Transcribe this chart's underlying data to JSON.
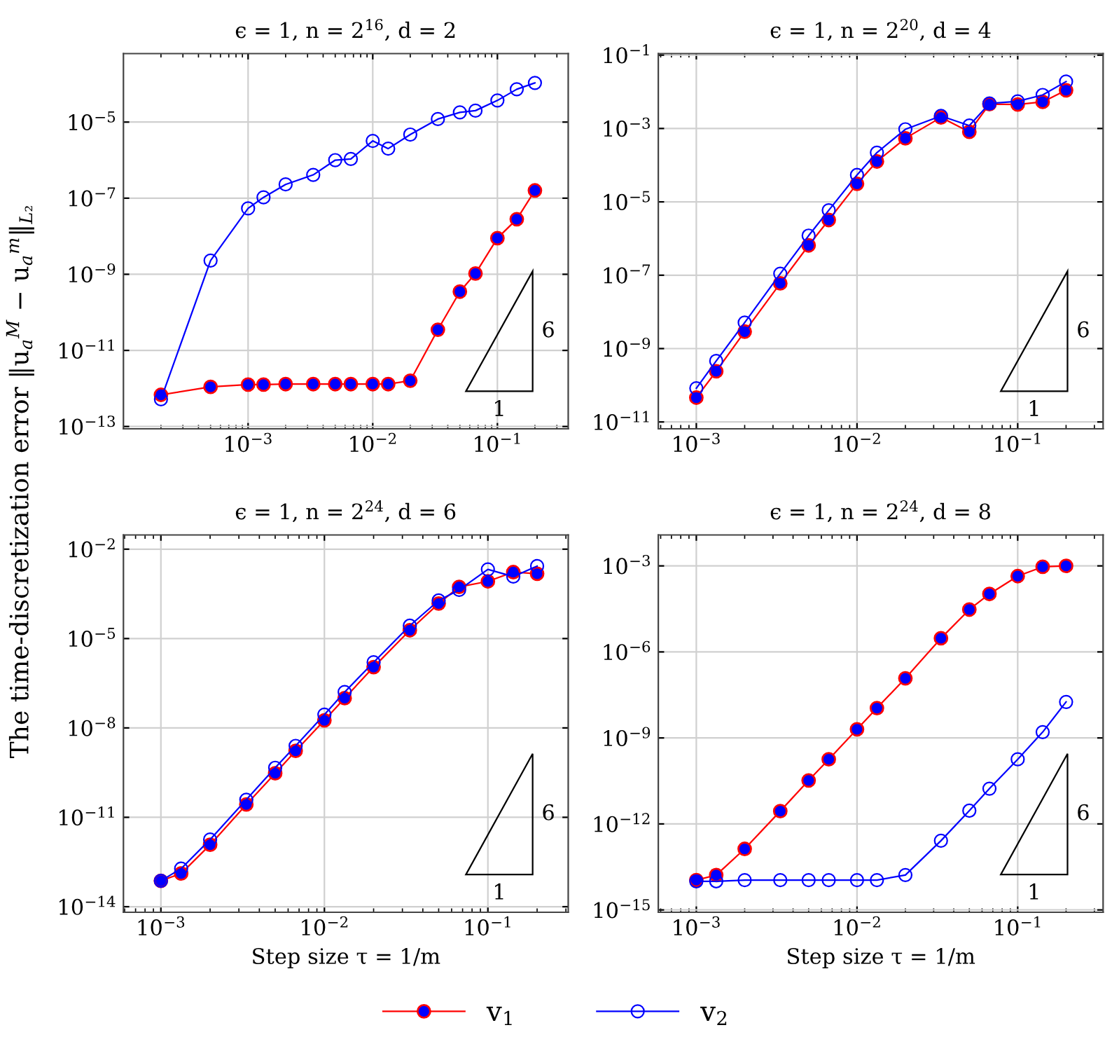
{
  "chart_data": [
    {
      "type": "line",
      "title": "ϵ = 1, n = 2$^{16}$, d = 2",
      "ylabel": "The time-discretization error ‖u$_{a}$$^{M}$ − u$_{a}$$^{m}$‖$_{L₂}$",
      "log": "xy",
      "grid": true,
      "marker": "circle",
      "legend": "bottom",
      "annotations": [
        "6",
        "1"
      ],
      "x": [
        0.0002,
        0.0005,
        0.001,
        0.00133,
        0.002,
        0.00333,
        0.005,
        0.00667,
        0.01,
        0.0133,
        0.02,
        0.0333,
        0.05,
        0.0667,
        0.1,
        0.143,
        0.2
      ],
      "xlim": [
        0.0001,
        0.37
      ],
      "ylim": [
        8.7e-14,
        0.00063
      ],
      "xticks": [
        {
          "value": 0.001,
          "label": "10$^{−3}$"
        },
        {
          "value": 0.01,
          "label": "10$^{−2}$"
        },
        {
          "value": 0.1,
          "label": "10$^{−1}$"
        }
      ],
      "yticks": [
        {
          "value": 1e-13,
          "label": "10$^{−13}$"
        },
        {
          "value": 1e-11,
          "label": "10$^{−11}$"
        },
        {
          "value": 1e-09,
          "label": "10$^{−9}$"
        },
        {
          "value": 1e-07,
          "label": "10$^{−7}$"
        },
        {
          "value": 1e-05,
          "label": "10$^{−5}$"
        }
      ],
      "series": [
        {
          "name": "v$_{1}$",
          "color": "#ff0000",
          "values": [
            6.8e-13,
            1.1e-12,
            1.26e-12,
            1.26e-12,
            1.3e-12,
            1.3e-12,
            1.3e-12,
            1.3e-12,
            1.3e-12,
            1.3e-12,
            1.6e-12,
            3.5e-11,
            3.5e-10,
            1.05e-09,
            8.9e-09,
            2.8e-08,
            1.6e-07
          ]
        },
        {
          "name": "v$_{2}$",
          "color": "#0000ff",
          "values": [
            5.2e-13,
            2.3e-09,
            5.4e-08,
            1.05e-07,
            2.3e-07,
            4.1e-07,
            1e-06,
            1.07e-06,
            3.2e-06,
            2e-06,
            4.7e-06,
            1.2e-05,
            1.8e-05,
            2e-05,
            3.7e-05,
            7.3e-05,
            0.000107
          ]
        }
      ]
    },
    {
      "type": "line",
      "title": "ϵ = 1, n = 2$^{20}$, d = 4",
      "log": "xy",
      "grid": true,
      "marker": "circle",
      "annotations": [
        "6",
        "1"
      ],
      "x": [
        0.001,
        0.00133,
        0.002,
        0.00333,
        0.005,
        0.00667,
        0.01,
        0.0133,
        0.02,
        0.0333,
        0.05,
        0.0667,
        0.1,
        0.143,
        0.2
      ],
      "xlim": [
        0.00058,
        0.34
      ],
      "ylim": [
        6.5e-12,
        0.11
      ],
      "xticks": [
        {
          "value": 0.001,
          "label": "10$^{−3}$"
        },
        {
          "value": 0.01,
          "label": "10$^{−2}$"
        },
        {
          "value": 0.1,
          "label": "10$^{−1}$"
        }
      ],
      "yticks": [
        {
          "value": 1e-11,
          "label": "10$^{−11}$"
        },
        {
          "value": 1e-09,
          "label": "10$^{−9}$"
        },
        {
          "value": 1e-07,
          "label": "10$^{−7}$"
        },
        {
          "value": 1e-05,
          "label": "10$^{−5}$"
        },
        {
          "value": 0.001,
          "label": "10$^{−3}$"
        },
        {
          "value": 0.1,
          "label": "10$^{−1}$"
        }
      ],
      "series": [
        {
          "color": "#ff0000",
          "values": [
            4.6e-11,
            2.4e-10,
            2.9e-09,
            6e-08,
            6.5e-07,
            3.2e-06,
            3.1e-05,
            0.000126,
            0.00054,
            0.002,
            0.00081,
            0.0046,
            0.0045,
            0.0053,
            0.011
          ]
        },
        {
          "color": "#0000ff",
          "values": [
            8.3e-11,
            4.6e-10,
            5.1e-09,
            1.1e-07,
            1.2e-06,
            5.9e-06,
            5.4e-05,
            0.00022,
            0.00095,
            0.0022,
            0.0012,
            0.0048,
            0.0055,
            0.0082,
            0.019
          ]
        }
      ]
    },
    {
      "type": "line",
      "title": "ϵ = 1, n = 2$^{24}$, d = 6",
      "xlabel": "Step size τ = 1/m",
      "log": "xy",
      "grid": true,
      "marker": "circle",
      "annotations": [
        "6",
        "1"
      ],
      "x": [
        0.001,
        0.00133,
        0.002,
        0.00333,
        0.005,
        0.00667,
        0.01,
        0.0133,
        0.02,
        0.0333,
        0.05,
        0.0667,
        0.1,
        0.143,
        0.2
      ],
      "xlim": [
        0.00059,
        0.31
      ],
      "ylim": [
        6.5e-15,
        0.03
      ],
      "xticks": [
        {
          "value": 0.001,
          "label": "10$^{−3}$"
        },
        {
          "value": 0.01,
          "label": "10$^{−2}$"
        },
        {
          "value": 0.1,
          "label": "10$^{−1}$"
        }
      ],
      "yticks": [
        {
          "value": 1e-14,
          "label": "10$^{−14}$"
        },
        {
          "value": 1e-11,
          "label": "10$^{−11}$"
        },
        {
          "value": 1e-08,
          "label": "10$^{−8}$"
        },
        {
          "value": 1e-05,
          "label": "10$^{−5}$"
        },
        {
          "value": 0.01,
          "label": "10$^{−2}$"
        }
      ],
      "series": [
        {
          "color": "#ff0000",
          "values": [
            7.4e-14,
            1.3e-13,
            1.2e-12,
            2.7e-11,
            3e-10,
            1.7e-09,
            1.8e-08,
            1e-07,
            1.1e-06,
            1.9e-05,
            0.00015,
            0.00054,
            0.00083,
            0.0017,
            0.0015
          ]
        },
        {
          "color": "#0000ff",
          "values": [
            7.4e-14,
            1.9e-13,
            1.8e-12,
            3.9e-11,
            4.6e-10,
            2.5e-09,
            2.8e-08,
            1.6e-07,
            1.6e-06,
            2.7e-05,
            0.00019,
            0.00043,
            0.0021,
            0.0012,
            0.0027
          ]
        }
      ]
    },
    {
      "type": "line",
      "title": "ϵ = 1, n = 2$^{24}$, d = 8",
      "xlabel": "Step size τ = 1/m",
      "log": "xy",
      "grid": true,
      "marker": "circle",
      "annotations": [
        "6",
        "1"
      ],
      "x": [
        0.001,
        0.00133,
        0.002,
        0.00333,
        0.005,
        0.00667,
        0.01,
        0.0133,
        0.02,
        0.0333,
        0.05,
        0.0667,
        0.1,
        0.143,
        0.2
      ],
      "xlim": [
        0.00058,
        0.34
      ],
      "ylim": [
        8.3e-16,
        0.012
      ],
      "xticks": [
        {
          "value": 0.001,
          "label": "10$^{−3}$"
        },
        {
          "value": 0.01,
          "label": "10$^{−2}$"
        },
        {
          "value": 0.1,
          "label": "10$^{−1}$"
        }
      ],
      "yticks": [
        {
          "value": 1e-15,
          "label": "10$^{−15}$"
        },
        {
          "value": 1e-12,
          "label": "10$^{−12}$"
        },
        {
          "value": 1e-09,
          "label": "10$^{−9}$"
        },
        {
          "value": 1e-06,
          "label": "10$^{−6}$"
        },
        {
          "value": 0.001,
          "label": "10$^{−3}$"
        }
      ],
      "series": [
        {
          "color": "#ff0000",
          "values": [
            1.1e-14,
            1.65e-14,
            1.35e-13,
            2.8e-12,
            3.3e-11,
            1.8e-10,
            2e-09,
            1.1e-08,
            1.2e-07,
            3e-06,
            3e-05,
            0.000105,
            0.00044,
            0.00093,
            0.001
          ]
        },
        {
          "color": "#0000ff",
          "values": [
            1e-14,
            1e-14,
            1.1e-14,
            1.1e-14,
            1.1e-14,
            1.1e-14,
            1.1e-14,
            1.1e-14,
            1.65e-14,
            2.6e-13,
            2.9e-12,
            1.7e-11,
            1.8e-10,
            1.6e-09,
            1.8e-08
          ]
        }
      ]
    }
  ]
}
